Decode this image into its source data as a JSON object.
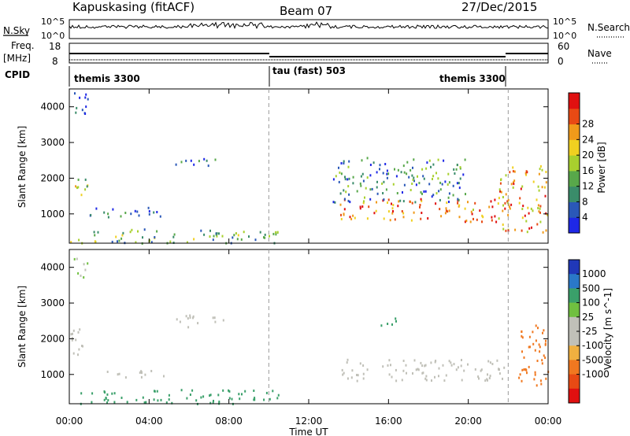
{
  "header": {
    "station": "Kapuskasing (fitACF)",
    "beam": "Beam 07",
    "date": "27/Dec/2015"
  },
  "panels": {
    "nsky_label": "N.Sky",
    "nsearch_label": "N.Search",
    "nsky_ticks": [
      "10^5",
      "10^0"
    ],
    "nsearch_ticks": [
      "10^5",
      "10^0"
    ],
    "freq_label_1": "Freq.",
    "freq_label_2": "[MHz]",
    "freq_ticks": [
      "18",
      "8"
    ],
    "nave_ticks": [
      "60",
      "0"
    ],
    "nave_label": "Nave",
    "cpid_label": "CPID",
    "cpid_segments": [
      {
        "name": "themis 3300",
        "start_hour": 0,
        "end_hour": 10
      },
      {
        "name": "tau (fast) 503",
        "start_hour": 10,
        "end_hour": 22
      },
      {
        "name": "themis 3300",
        "start_hour": 22,
        "end_hour": 24
      }
    ]
  },
  "power_colorbar": {
    "label": "Power [dB]",
    "ticks": [
      "4",
      "8",
      "12",
      "16",
      "20",
      "24",
      "28"
    ],
    "colors": [
      "#1e28e6",
      "#2a58b8",
      "#3a8c6a",
      "#58a84a",
      "#a8d02e",
      "#f0d020",
      "#f09a1a",
      "#e84a14",
      "#e01010"
    ]
  },
  "velocity_colorbar": {
    "label": "Velocity [m s^-1]",
    "ticks": [
      "1000",
      "500",
      "100",
      "25",
      "-25",
      "-100",
      "-500",
      "-1000"
    ],
    "colors": [
      "#2038b8",
      "#2a78c8",
      "#3aa06a",
      "#70c040",
      "#c0c0b8",
      "#c0c0b8",
      "#f0b040",
      "#f07820",
      "#e84a14",
      "#e01010"
    ]
  },
  "chart_data": {
    "type": "heatmap",
    "xlabel": "Time UT",
    "ylabel": "Slant Range [km]",
    "x_ticks": [
      "00:00",
      "04:00",
      "08:00",
      "12:00",
      "16:00",
      "20:00",
      "00:00"
    ],
    "y_ticks": [
      "1000",
      "2000",
      "3000",
      "4000"
    ],
    "xlim_hours": [
      0,
      24
    ],
    "ylim_km": [
      180,
      4500
    ],
    "mode_change_hours": [
      10,
      22
    ],
    "power_scatter_patches": [
      {
        "t0": 0.1,
        "t1": 0.9,
        "r0": 3700,
        "r1": 4500,
        "level": 0.1
      },
      {
        "t0": 0.1,
        "t1": 0.9,
        "r0": 1500,
        "r1": 2200,
        "level": 0.5
      },
      {
        "t0": 1.0,
        "t1": 4.7,
        "r0": 900,
        "r1": 1200,
        "level": 0.2
      },
      {
        "t0": 5.3,
        "t1": 7.7,
        "r0": 2350,
        "r1": 2600,
        "level": 0.15
      },
      {
        "t0": 0.0,
        "t1": 10.5,
        "r0": 200,
        "r1": 600,
        "level": 0.35
      },
      {
        "t0": 13.5,
        "t1": 22.0,
        "r0": 800,
        "r1": 1450,
        "level": 0.8
      },
      {
        "t0": 13.2,
        "t1": 20.0,
        "r0": 1350,
        "r1": 2600,
        "level": 0.3
      },
      {
        "t0": 21.5,
        "t1": 24.0,
        "r0": 500,
        "r1": 2400,
        "level": 0.7
      }
    ],
    "velocity_scatter_patches": [
      {
        "t0": 0.1,
        "t1": 0.9,
        "r0": 3700,
        "r1": 4300,
        "value": 25
      },
      {
        "t0": 0.0,
        "t1": 1.0,
        "r0": 1500,
        "r1": 2300,
        "value": 0
      },
      {
        "t0": 1.0,
        "t1": 4.7,
        "r0": 950,
        "r1": 1150,
        "value": 0
      },
      {
        "t0": 5.3,
        "t1": 7.7,
        "r0": 2350,
        "r1": 2700,
        "value": 0
      },
      {
        "t0": 0.5,
        "t1": 10.5,
        "r0": 200,
        "r1": 600,
        "value": 120
      },
      {
        "t0": 13.5,
        "t1": 22.0,
        "r0": 850,
        "r1": 1450,
        "value": 0
      },
      {
        "t0": 15.5,
        "t1": 16.5,
        "r0": 2300,
        "r1": 2600,
        "value": 150
      },
      {
        "t0": 22.5,
        "t1": 24.0,
        "r0": 700,
        "r1": 2500,
        "value": -200
      }
    ]
  }
}
